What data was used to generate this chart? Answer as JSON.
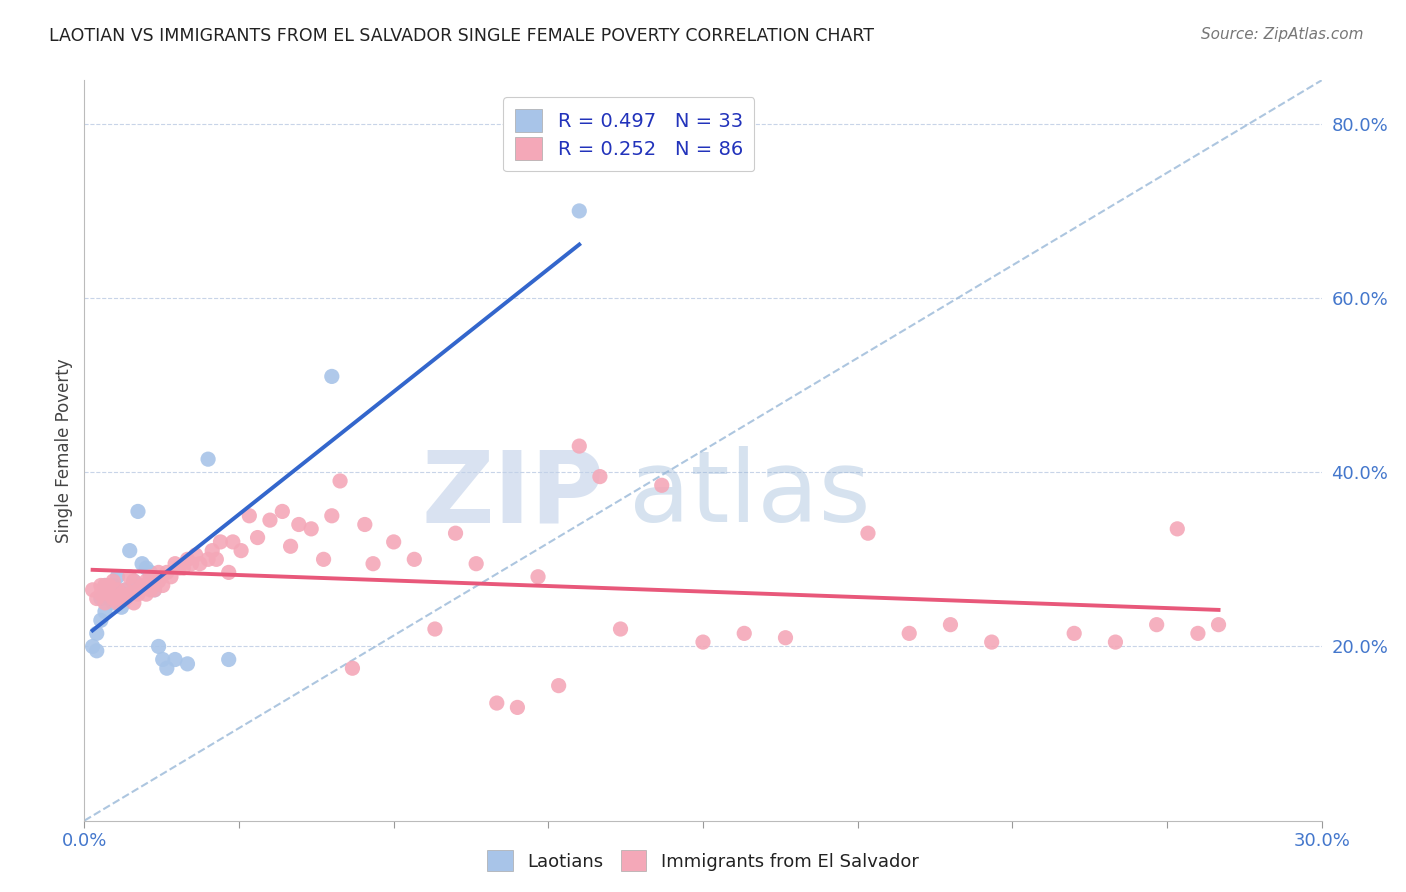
{
  "title": "LAOTIAN VS IMMIGRANTS FROM EL SALVADOR SINGLE FEMALE POVERTY CORRELATION CHART",
  "source": "Source: ZipAtlas.com",
  "ylabel": "Single Female Poverty",
  "xlim": [
    0.0,
    0.3
  ],
  "ylim": [
    0.0,
    0.85
  ],
  "yticks_right": [
    0.2,
    0.4,
    0.6,
    0.8
  ],
  "yticklabels_right": [
    "20.0%",
    "40.0%",
    "60.0%",
    "80.0%"
  ],
  "background_color": "#ffffff",
  "grid_color": "#c8d4e8",
  "laotian_color": "#a8c4e8",
  "salvador_color": "#f4a8b8",
  "laotian_line_color": "#3366cc",
  "salvador_line_color": "#e8587a",
  "dashed_line_color": "#99b8d8",
  "R_laotian": 0.497,
  "N_laotian": 33,
  "R_salvador": 0.252,
  "N_salvador": 86,
  "watermark_zip": "ZIP",
  "watermark_atlas": "atlas",
  "laotian_x": [
    0.002,
    0.003,
    0.003,
    0.004,
    0.004,
    0.005,
    0.005,
    0.005,
    0.006,
    0.006,
    0.007,
    0.007,
    0.008,
    0.008,
    0.009,
    0.01,
    0.01,
    0.011,
    0.012,
    0.013,
    0.014,
    0.015,
    0.016,
    0.017,
    0.018,
    0.019,
    0.02,
    0.022,
    0.025,
    0.03,
    0.035,
    0.06,
    0.12
  ],
  "laotian_y": [
    0.2,
    0.195,
    0.215,
    0.255,
    0.23,
    0.24,
    0.26,
    0.27,
    0.255,
    0.265,
    0.25,
    0.27,
    0.26,
    0.28,
    0.245,
    0.265,
    0.255,
    0.31,
    0.275,
    0.355,
    0.295,
    0.29,
    0.285,
    0.265,
    0.2,
    0.185,
    0.175,
    0.185,
    0.18,
    0.415,
    0.185,
    0.51,
    0.7
  ],
  "salvador_x": [
    0.002,
    0.003,
    0.004,
    0.004,
    0.005,
    0.005,
    0.006,
    0.006,
    0.007,
    0.007,
    0.008,
    0.008,
    0.009,
    0.009,
    0.01,
    0.01,
    0.011,
    0.011,
    0.012,
    0.012,
    0.013,
    0.013,
    0.014,
    0.015,
    0.015,
    0.016,
    0.016,
    0.017,
    0.018,
    0.018,
    0.019,
    0.02,
    0.021,
    0.022,
    0.023,
    0.024,
    0.025,
    0.026,
    0.027,
    0.028,
    0.03,
    0.031,
    0.032,
    0.033,
    0.035,
    0.036,
    0.038,
    0.04,
    0.042,
    0.045,
    0.048,
    0.05,
    0.052,
    0.055,
    0.058,
    0.06,
    0.062,
    0.065,
    0.068,
    0.07,
    0.075,
    0.08,
    0.085,
    0.09,
    0.095,
    0.1,
    0.105,
    0.11,
    0.115,
    0.12,
    0.125,
    0.13,
    0.14,
    0.15,
    0.16,
    0.17,
    0.19,
    0.2,
    0.21,
    0.22,
    0.24,
    0.25,
    0.26,
    0.265,
    0.27,
    0.275
  ],
  "salvador_y": [
    0.265,
    0.255,
    0.27,
    0.26,
    0.25,
    0.27,
    0.26,
    0.27,
    0.255,
    0.275,
    0.25,
    0.265,
    0.26,
    0.255,
    0.255,
    0.265,
    0.26,
    0.28,
    0.25,
    0.275,
    0.265,
    0.26,
    0.27,
    0.26,
    0.275,
    0.265,
    0.28,
    0.265,
    0.275,
    0.285,
    0.27,
    0.285,
    0.28,
    0.295,
    0.29,
    0.29,
    0.3,
    0.295,
    0.305,
    0.295,
    0.3,
    0.31,
    0.3,
    0.32,
    0.285,
    0.32,
    0.31,
    0.35,
    0.325,
    0.345,
    0.355,
    0.315,
    0.34,
    0.335,
    0.3,
    0.35,
    0.39,
    0.175,
    0.34,
    0.295,
    0.32,
    0.3,
    0.22,
    0.33,
    0.295,
    0.135,
    0.13,
    0.28,
    0.155,
    0.43,
    0.395,
    0.22,
    0.385,
    0.205,
    0.215,
    0.21,
    0.33,
    0.215,
    0.225,
    0.205,
    0.215,
    0.205,
    0.225,
    0.335,
    0.215,
    0.225
  ]
}
